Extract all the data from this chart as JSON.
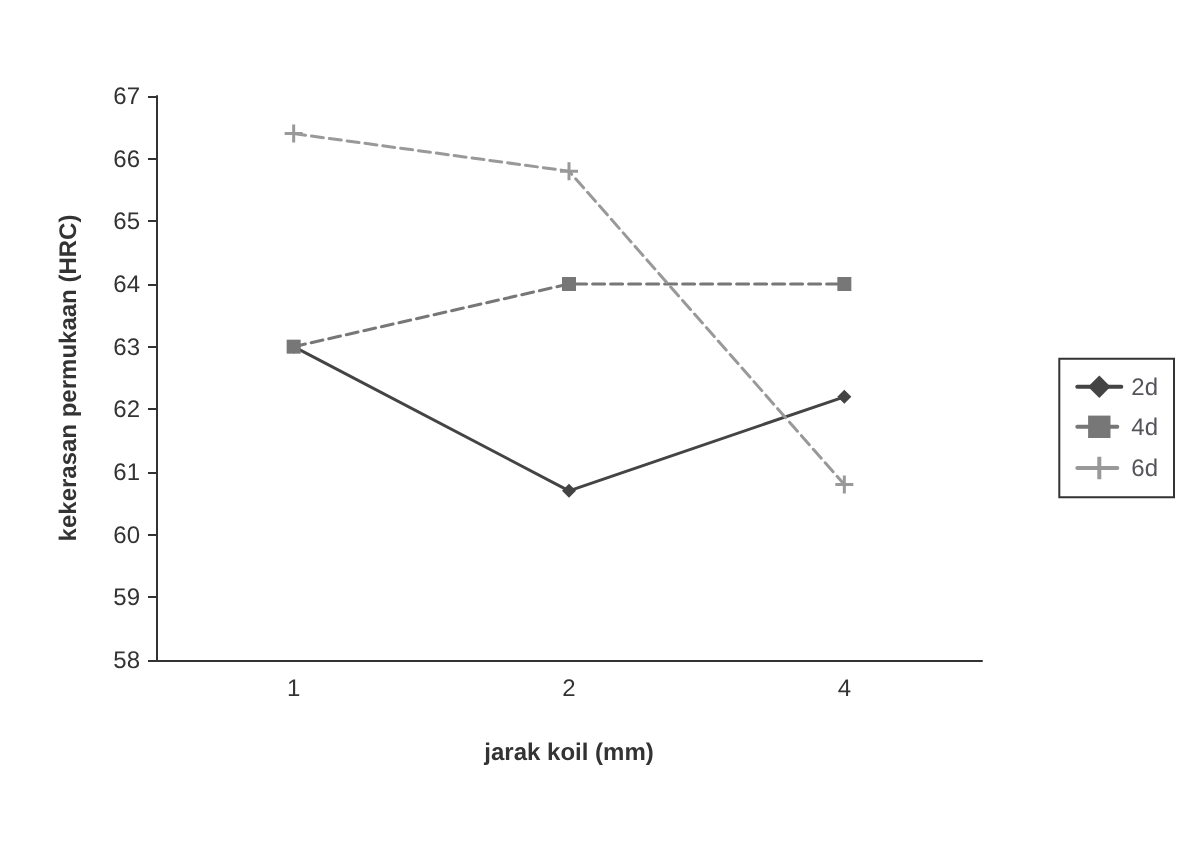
{
  "chart_data": {
    "type": "line",
    "xlabel": "jarak koil (mm)",
    "ylabel": "kekerasan permukaan (HRC)",
    "categories": [
      "1",
      "2",
      "4"
    ],
    "series": [
      {
        "name": "2d",
        "color": "#444444",
        "marker": "diamond",
        "line_style": "solid",
        "values": [
          63,
          60.7,
          62.2
        ]
      },
      {
        "name": "4d",
        "color": "#777777",
        "marker": "square",
        "line_style": "dashed",
        "values": [
          63,
          64,
          64
        ]
      },
      {
        "name": "6d",
        "color": "#999999",
        "marker": "cross",
        "line_style": "dashed",
        "values": [
          66.4,
          65.8,
          60.8
        ]
      }
    ],
    "ylim": [
      58,
      67
    ],
    "yticks": [
      58,
      59,
      60,
      61,
      62,
      63,
      64,
      65,
      66,
      67
    ],
    "grid": false,
    "legend": "right"
  }
}
